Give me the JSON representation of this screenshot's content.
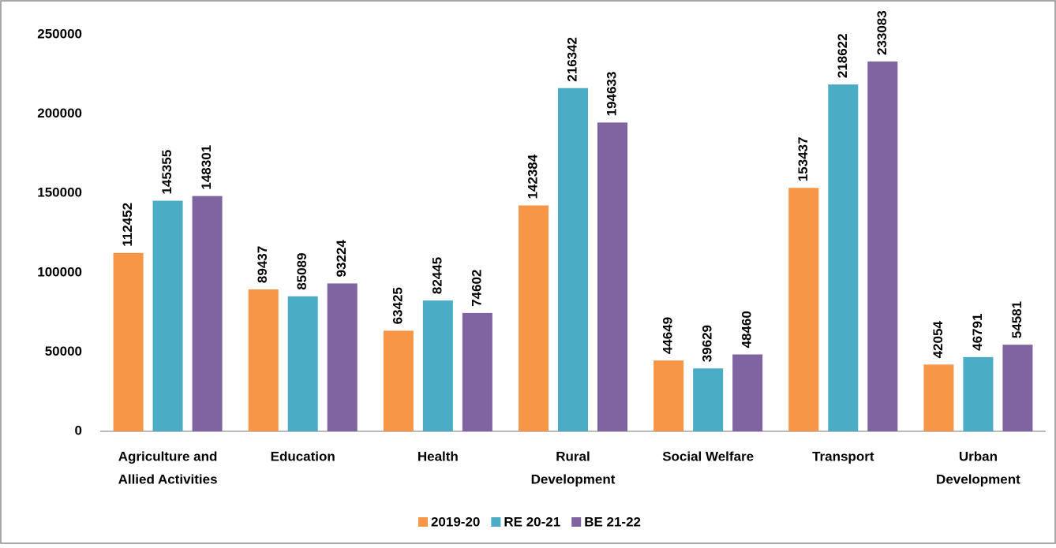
{
  "chart_data": {
    "type": "bar",
    "categories": [
      [
        "Agriculture and",
        "Allied Activities"
      ],
      [
        "Education"
      ],
      [
        "Health"
      ],
      [
        "Rural",
        "Development"
      ],
      [
        "Social Welfare"
      ],
      [
        "Transport"
      ],
      [
        "Urban",
        "Development"
      ]
    ],
    "series": [
      {
        "name": "2019-20",
        "color": "#F79646",
        "values": [
          112452,
          89437,
          63425,
          142384,
          44649,
          153437,
          42054
        ]
      },
      {
        "name": "RE 20-21",
        "color": "#4BACC6",
        "values": [
          145355,
          85089,
          82445,
          216342,
          39629,
          218622,
          46791
        ]
      },
      {
        "name": "BE 21-22",
        "color": "#8064A2",
        "values": [
          148301,
          93224,
          74602,
          194633,
          48460,
          233083,
          54581
        ]
      }
    ],
    "ylim": [
      0,
      250000
    ],
    "yticks": [
      0,
      50000,
      100000,
      150000,
      200000,
      250000
    ],
    "grid": false,
    "legend": "bottom"
  }
}
